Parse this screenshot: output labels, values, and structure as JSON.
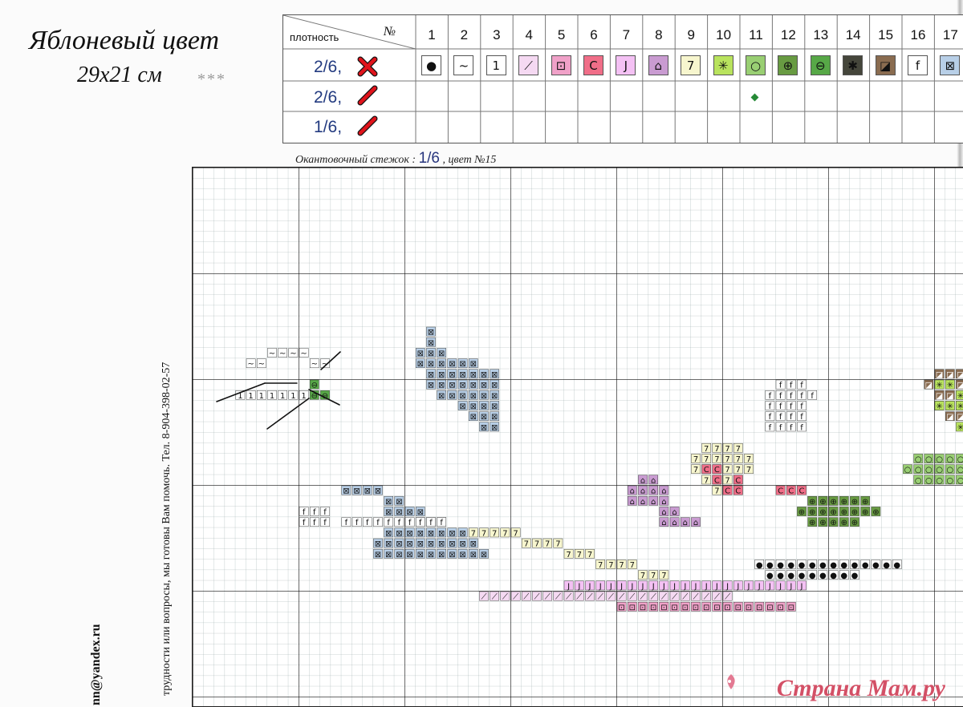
{
  "header": {
    "title": "Яблоневый цвет",
    "size": "29x21 см",
    "rating": "***"
  },
  "legend": {
    "density_label": "плотность",
    "number_label": "№",
    "rows": [
      "2/6,",
      "2/6,",
      "1/6,"
    ],
    "numbers": [
      "1",
      "2",
      "3",
      "4",
      "5",
      "6",
      "7",
      "8",
      "9",
      "10",
      "11",
      "12",
      "13",
      "14",
      "15",
      "16",
      "17"
    ],
    "symbols": [
      "●",
      "~",
      "1",
      "⟋",
      "⊡",
      "C",
      "J",
      "⌂",
      "7",
      "✳",
      "○",
      "⊕",
      "⊖",
      "✱",
      "◪",
      "f",
      "⊠"
    ],
    "colors": [
      "#ffffff",
      "#ffffff",
      "#ffffff",
      "#f5d9f2",
      "#f0a1c8",
      "#f06e88",
      "#f4c1f4",
      "#c99bd1",
      "#f7f6ce",
      "#b9e35e",
      "#99cf73",
      "#689b42",
      "#57a847",
      "#45463b",
      "#8a6c50",
      "#ffffff",
      "#b8cfe7"
    ]
  },
  "notes": {
    "backstitch_label": "Окантовочный стежок :",
    "backstitch_density": "1/6",
    "backstitch_color": ", цвет №15",
    "phone_text": "трудности или вопросы, мы готовы Вам помочь.  Тел. 8-904-398-02-57",
    "email": "nn@yandex.ru"
  },
  "watermark": "Страна Мам.ру",
  "pattern": {
    "symbol_legend": [
      "black dot",
      "tilde",
      "one",
      "slash",
      "boxed dot",
      "c",
      "j",
      "house",
      "seven",
      "star",
      "circle",
      "crossed circle",
      "tree",
      "asterisk",
      "half square",
      "f",
      "box x"
    ]
  }
}
